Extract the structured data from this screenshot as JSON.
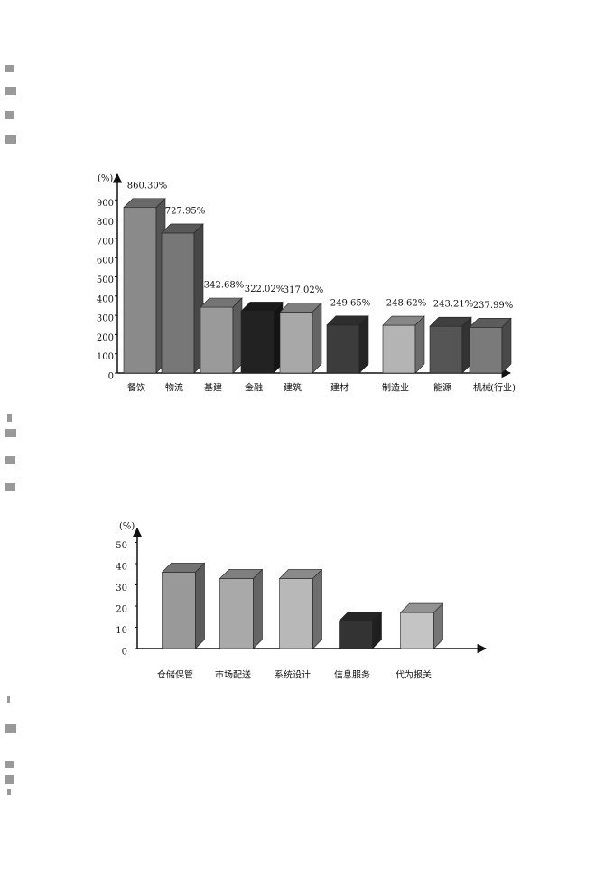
{
  "chart_data": [
    {
      "type": "bar3d",
      "y_label": "(%)",
      "x_label": "(行业)",
      "categories": [
        "餐饮",
        "物流",
        "基建",
        "金融",
        "建筑",
        "建材",
        "制造业",
        "能源",
        "机械"
      ],
      "values": [
        860.3,
        727.95,
        342.68,
        322.02,
        317.02,
        249.65,
        248.62,
        243.21,
        237.99
      ],
      "value_labels": [
        "860.30%",
        "727.95%",
        "342.68%",
        "322.02%",
        "317.02%",
        "249.65%",
        "248.62%",
        "243.21%",
        "237.99%"
      ],
      "colors": [
        "#8a8a8a",
        "#777777",
        "#9a9a9a",
        "#222222",
        "#a8a8a8",
        "#3c3c3c",
        "#b4b4b4",
        "#555555",
        "#7a7a7a"
      ],
      "ylim": [
        0,
        1000
      ],
      "yticks": [
        0,
        100,
        200,
        300,
        400,
        500,
        600,
        700,
        800,
        900
      ]
    },
    {
      "type": "bar3d",
      "y_label": "(%)",
      "categories": [
        "仓储保管",
        "市场配送",
        "系统设计",
        "信息服务",
        "代为报关"
      ],
      "values": [
        36,
        33,
        33,
        13,
        17
      ],
      "colors": [
        "#999999",
        "#a9a9a9",
        "#b8b8b8",
        "#333333",
        "#c4c4c4"
      ],
      "ylim": [
        0,
        55
      ],
      "yticks": [
        0,
        10,
        20,
        30,
        40,
        50
      ]
    }
  ]
}
